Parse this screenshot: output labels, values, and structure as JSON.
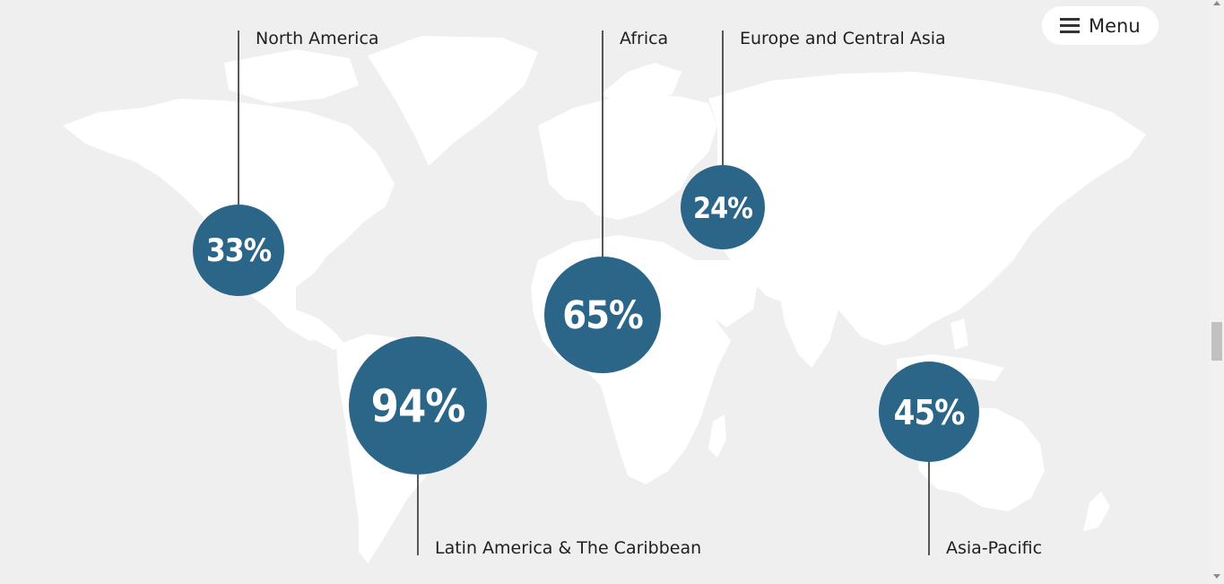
{
  "menu": {
    "label": "Menu",
    "icon": "hamburger-icon"
  },
  "colors": {
    "bubble": "#2b6689",
    "map_land": "#ffffff",
    "background": "#efefef",
    "leader_line": "#222222"
  },
  "chart_data": {
    "type": "bubble-map",
    "title": "",
    "regions": [
      {
        "name": "North America",
        "value": 33,
        "display": "33%"
      },
      {
        "name": "Africa",
        "value": 65,
        "display": "65%"
      },
      {
        "name": "Europe and Central Asia",
        "value": 24,
        "display": "24%"
      },
      {
        "name": "Latin America & The Caribbean",
        "value": 94,
        "display": "94%"
      },
      {
        "name": "Asia-Pacific",
        "value": 45,
        "display": "45%"
      }
    ]
  }
}
